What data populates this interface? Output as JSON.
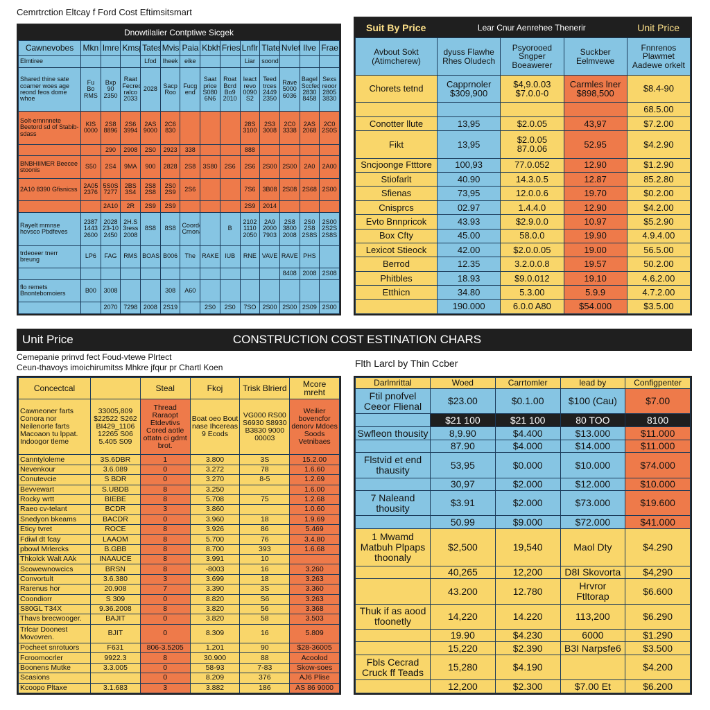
{
  "top_left": {
    "caption": "Cemrtrction Eltcay f Ford Cost Eftimsitsmart",
    "title": "Dnowtilalier Contptiwe Sicgek",
    "columns": [
      "Cawnevobes",
      "Mkn",
      "Imre",
      "Kmsp",
      "Tates",
      "Mvis",
      "Paia",
      "Kbkh",
      "Fries",
      "Lnflr",
      "Tlate",
      "Nvlet",
      "Ilve",
      "Frae"
    ],
    "header_colors": [
      "#86c5e3",
      "#86c5e3",
      "#86c5e3",
      "#86c5e3",
      "#86c5e3",
      "#86c5e3",
      "#86c5e3",
      "#86c5e3",
      "#86c5e3",
      "#86c5e3",
      "#86c5e3",
      "#86c5e3",
      "#86c5e3",
      "#86c5e3"
    ],
    "groups": [
      {
        "color": "#86c5e3",
        "rows": [
          [
            "Elmtiree",
            null,
            null,
            null,
            "Lfod",
            "Iheek",
            "eike",
            null,
            null,
            "Liar",
            "soond",
            null,
            null,
            null
          ],
          [
            "Shared thine sate coamer woes age reond feos dome whoe",
            "Fu Bo RMS",
            "Bxp 90 2350",
            "Raat Fecred ralco 2033",
            "2028",
            "Sacp Roo",
            "Fucg end",
            "Saat price S080 6N6",
            "Roat Bcrd Bo9 2010",
            "Ieact revo 0090 S2",
            "Teed trces 2449 2350",
            "Rave 5000 6036",
            "Bagel Sccfeo 2830 8458",
            "Sexs reoor 2805 3830"
          ]
        ]
      },
      {
        "color": "#ee7a4a",
        "rows": [
          [
            "Solt-ernnnnete Beetord sd of Stabib-sdass",
            "KIS 0000",
            "2S8 8896",
            "2S6 3994",
            "2AS 9000",
            "2C6 830",
            null,
            null,
            null,
            "28S 3100",
            "2S3 3008",
            "2C0 3338",
            "2AS 2068",
            "2C0 2S0S"
          ],
          [
            null,
            null,
            "290",
            "2908",
            "2S0",
            "2923",
            "338",
            null,
            null,
            "888",
            null,
            null,
            null,
            null
          ],
          [
            "BNBHIIMER Beecee stoonis",
            "S50",
            "2S4",
            "9MA",
            "900",
            "2828",
            "2S8",
            "3S80",
            "2S6",
            "2S6",
            "2S00",
            "2S00",
            "2A0",
            "2A00"
          ],
          [
            "2A10 8390 Gfisnicss",
            "2A05 2376",
            "5S0S 7277",
            "2BS 3S4",
            "2S8 2S8",
            "2S0 2S9",
            "2S6",
            null,
            null,
            "7S6",
            "3B08",
            "2S08",
            "2S68",
            "2S00"
          ],
          [
            null,
            null,
            "2A10",
            "2R",
            "2S9",
            "2S9",
            null,
            null,
            null,
            "2S9",
            "2014",
            null,
            null,
            null
          ]
        ]
      },
      {
        "color": "#86c5e3",
        "rows": [
          [
            "Rayelt mmnse hovsco Pbdfeves",
            "2387 1443 2600",
            "2028 23-10 2450",
            "2H.S 3ress 2008",
            "8S8",
            "8S8",
            "Coordent Crnonato",
            null,
            "B",
            "2102 1110 2050",
            "2A9 2000 7903",
            "2S8 3800 2008",
            "2S0 2S8 2S8S",
            "2S00 2S2S 2S8S"
          ],
          [
            "trdeoeer tnerr breung",
            "LP6",
            "FAG",
            "RMS",
            "BOAS",
            "B006",
            "The",
            "RAKE",
            "IUB",
            "RNE",
            "VAVE",
            "RAVE",
            "PHS",
            null
          ],
          [
            null,
            null,
            null,
            null,
            null,
            null,
            null,
            null,
            null,
            null,
            null,
            "8408",
            "2008",
            "2S08"
          ],
          [
            "flo remets Bnontebomoiers",
            "B00",
            "3008",
            null,
            null,
            "308",
            "A60",
            null,
            null,
            null,
            null,
            null,
            null,
            null
          ],
          [
            null,
            null,
            "2070",
            "7298",
            "2008",
            "2S19",
            null,
            "2S0",
            "2S0",
            "7SO",
            "2S00",
            "2S00",
            "2S09",
            "2S00"
          ]
        ]
      }
    ]
  },
  "top_right": {
    "bar": [
      "Suit By Price",
      "Lear Cnur Aenrehee Thenerir",
      "Unit Price"
    ],
    "columns": [
      "Avbout Sokt (Atimcherew)",
      "dyuss Flawhe Rhes Oludech",
      "Psyorooed Sngper Boeawerer",
      "Suckber Eelmvewe",
      "Fnnrenos Plawmet Aadewe orkelt"
    ],
    "header_colors": [
      "#86c5e3",
      "#86c5e3",
      "#86c5e3",
      "#86c5e3",
      "#86c5e3"
    ],
    "groups": [
      {
        "colors": [
          "#f9d66a",
          "#86c5e3",
          "#f9d66a",
          "#ee7a4a",
          "#f9d66a"
        ],
        "rows": [
          [
            "Chorets tetnd",
            "Capprnoler $309,900",
            "$4,9.0.03 $7.0.0-0",
            "Carmles lner $898,500",
            "$8.4-90"
          ],
          [
            null,
            null,
            null,
            null,
            "68.5.00"
          ],
          [
            "Conotter llute",
            "13,95",
            "$2.0.05",
            "43,97",
            "$7.2.00"
          ],
          [
            "Fikt",
            "13,95",
            "$2.0.05 87.0.06",
            "52.95",
            "$4.2.90"
          ],
          [
            "Sncjoonge Ftttore",
            "100,93",
            "77.0.052",
            "12.90",
            "$1.2.90"
          ],
          [
            "Stiofarlt",
            "40.90",
            "14.3.0.5",
            "12.87",
            "85.2.80"
          ],
          [
            "Sfienas",
            "73,95",
            "12.0.0.6",
            "19.70",
            "$0.2.00"
          ],
          [
            "Cnisprcs",
            "02.97",
            "1.4.4.0",
            "12.90",
            "$4.2.00"
          ],
          [
            "Evto Bnnpricok",
            "43.93",
            "$2.9.0.0",
            "10.97",
            "$5.2.90"
          ],
          [
            "Box Cfty",
            "45.00",
            "58.0.0",
            "19.90",
            "4.9.4.00"
          ],
          [
            "Lexicot Stieock",
            "42.00",
            "$2.0.0.05",
            "19.00",
            "56.5.00"
          ],
          [
            "Berrod",
            "12.35",
            "3.2.0.0.8",
            "19.57",
            "50.2.00"
          ],
          [
            "Phitbles",
            "18.93",
            "$9.0.012",
            "19.10",
            "4.6.2.00"
          ],
          [
            "Etthicn",
            "34.80",
            "5.3.00",
            "5.9.9",
            "4.7.2.00"
          ],
          [
            null,
            "190.000",
            "6.0.0 A80",
            "$54.000",
            "$3.5.00"
          ]
        ]
      }
    ]
  },
  "band": {
    "left": "Unit Price",
    "title": "CONSTRUCTION COST ESTINATION CHARS"
  },
  "bottom_left": {
    "subtitle": [
      "Cemepanie prinvd fect Foud-vtewe Plrtect",
      "Ceun-thavoys imoichirumitss Mhkre jfqur pr Chartl Koen"
    ],
    "columns": [
      "Concectcal",
      null,
      "Steal",
      "Fkoj",
      "Trisk Blrierd",
      "Mcore mreht"
    ],
    "header_colors": [
      "#f9d66a",
      "#f9d66a",
      "#f9d66a",
      "#f9d66a",
      "#f9d66a",
      "#f9d66a"
    ],
    "groups": [
      {
        "colors": [
          "#f9d66a",
          "#f9d66a",
          "#ee7a4a",
          "#f9d66a",
          "#f9d66a",
          "#ee7a4a"
        ],
        "rows": [
          [
            "Cawneoner farts Conora nor Neilenorte farts Macoaon tu lppat. Indoogor tleme",
            "33005,809 $22522 S262 BI429_1106 12265 S06 5.405 S09",
            "Thread Raraopt Etdevtivs Cored aotle ottatn ci gdmt brot.",
            "Boat oeo Bout nase Ihcereas 9 Ecods",
            "VG000 RS00 S6930 S8930 B3830 9000 00003",
            "Weilier bovencfor denorv Mdoes Soods Vetnibaes"
          ],
          [
            "Canntyloleme",
            "3S.6DBR",
            "1",
            "3.800",
            "3S",
            "15.2.00"
          ],
          [
            "Nevenkour",
            "3.6.089",
            "0",
            "3.272",
            "78",
            "1.6.60"
          ],
          [
            "Conutevcie",
            "S BDR",
            "0",
            "3.270",
            "8-5",
            "1.2.69"
          ],
          [
            "Bevvewart",
            "S.UBDB",
            "8",
            "3.250",
            null,
            "1.6.00"
          ],
          [
            "Rocky wrtt",
            "BIEBE",
            "8",
            "5.708",
            "75",
            "1.2.68"
          ],
          [
            "Raeo cv-telant",
            "BCDR",
            "3",
            "3.860",
            null,
            "1.0.60"
          ],
          [
            "Snedyon bkeams",
            "BACDR",
            "0",
            "3.960",
            "18",
            "1.9.69"
          ],
          [
            "Eticy tvret",
            "ROCE",
            "8",
            "3.926",
            "86",
            "5.469"
          ],
          [
            "Fdiwl dt fcay",
            "LAAOM",
            "8",
            "5.700",
            "76",
            "3.4.80"
          ],
          [
            "pbowl Mrlercks",
            "B.GBB",
            "8",
            "8.700",
            "393",
            "1.6.68"
          ],
          [
            "Thkolck Walt AAk",
            "INAAUCE",
            "8",
            "3.991",
            "10",
            null
          ],
          [
            "Scowewnowcics",
            "BRSN",
            "8",
            "-8003",
            "16",
            "3.260"
          ],
          [
            "Convortult",
            "3.6.380",
            "3",
            "3.699",
            "18",
            "3.263"
          ],
          [
            "Rarenus hor",
            "20.908",
            "7",
            "3.390",
            "3S",
            "3.360"
          ],
          [
            "Coondiorr",
            "S 309",
            "0",
            "8.820",
            "S6",
            "3.263"
          ],
          [
            "S80GL T34X",
            "9.36.2008",
            "8",
            "3.820",
            "56",
            "3.368"
          ],
          [
            "Thavs brecwooger.",
            "BAJIT",
            "0",
            "3.820",
            "58",
            "3.503"
          ],
          [
            "Trlcar Doonest Movovren.",
            "BJIT",
            "0",
            "8.309",
            "16",
            "5.809"
          ],
          [
            "Pocheet snrotuors",
            "F631",
            "806-3.5205",
            "1.201",
            "90",
            "$28-36005"
          ],
          [
            "Fcroomocrler",
            "9922.3",
            "8",
            "30.900",
            "88",
            "Acoolod"
          ],
          [
            "Boonens Mutke",
            "3.3.005",
            "0",
            "58-93",
            "7-83",
            "Skow-soes"
          ],
          [
            "Scasions",
            null,
            "0",
            "8.209",
            "376",
            "AJ6 Plise"
          ],
          [
            "Kcoopo Pltaxe",
            "3.1.683",
            "3",
            "3.882",
            "186",
            "AS 86 9000"
          ]
        ]
      }
    ]
  },
  "bottom_right": {
    "caption": "Flth Larcl by Thin Ccber",
    "columns": [
      "Darlmrittal",
      "Woed",
      "Carrtomler",
      "lead by",
      "Configpenter"
    ],
    "header_colors": [
      "#f9d66a",
      "#f9d66a",
      "#f9d66a",
      "#f9d66a",
      "#f9d66a"
    ],
    "groups": [
      {
        "colors": [
          "#86c5e3",
          "#86c5e3",
          "#86c5e3",
          "#86c5e3",
          "#ee7a4a"
        ],
        "rows": [
          [
            "Ftil pnofvel Ceeor Flienal",
            "$23.00",
            "$0.1.00",
            "$100 (Cau)",
            "$7.00"
          ]
        ]
      },
      {
        "colors": [
          "#86c5e3",
          "#1f1f1f",
          "#1f1f1f",
          "#1f1f1f",
          "#1f1f1f"
        ],
        "text_color": "#ffffff",
        "rows": [
          [
            null,
            "$21 100",
            "$21 100",
            "80 TOO",
            "8100"
          ]
        ]
      },
      {
        "colors": [
          "#86c5e3",
          "#86c5e3",
          "#86c5e3",
          "#86c5e3",
          "#ee7a4a"
        ],
        "rows": [
          [
            "Swfleon thousity",
            "8,9.90",
            "$4.400",
            "$13.000",
            "$11.000"
          ],
          [
            null,
            "87.90",
            "$4.000",
            "$14.000",
            "$11.000"
          ],
          [
            "Flstvid et end thausity",
            "53,95",
            "$0.000",
            "$10.000",
            "$74.000"
          ],
          [
            null,
            "30,97",
            "$2.000",
            "$12.000",
            "$10.000"
          ],
          [
            "7 Naleand thousity",
            "$3.91",
            "$2.000",
            "$73.000",
            "$19.600"
          ],
          [
            null,
            "50.99",
            "$9.000",
            "$72.000",
            "$41.000"
          ]
        ]
      },
      {
        "colors": [
          "#f9d66a",
          "#f9d66a",
          "#f9d66a",
          "#f9d66a",
          "#f9d66a"
        ],
        "rows": [
          [
            "1 Mwamd Matbuh Plpaps thoonaly",
            "$2,500",
            "19,540",
            "Maol Dty",
            "$4.290"
          ],
          [
            null,
            "40,265",
            "12,200",
            "D8I Skovorta",
            "$4,290"
          ],
          [
            null,
            "43.200",
            "12.780",
            "Hrvror Ftltorap",
            "$6.600"
          ],
          [
            "Thuk if as aood tfoonetly",
            "14,220",
            "14.220",
            "113,200",
            "$6.290"
          ],
          [
            null,
            "19.90",
            "$4.230",
            "6000",
            "$1.290"
          ],
          [
            null,
            "15,220",
            "$2.390",
            "B3I Narpsfe6",
            "$3.500"
          ],
          [
            "Fbls Cecrad Cruck ff Teads",
            "15,280",
            "$4.190",
            null,
            "$4.200"
          ],
          [
            null,
            "12,200",
            "$2.300",
            "$7.00 Et",
            "$6.200"
          ]
        ]
      }
    ]
  }
}
